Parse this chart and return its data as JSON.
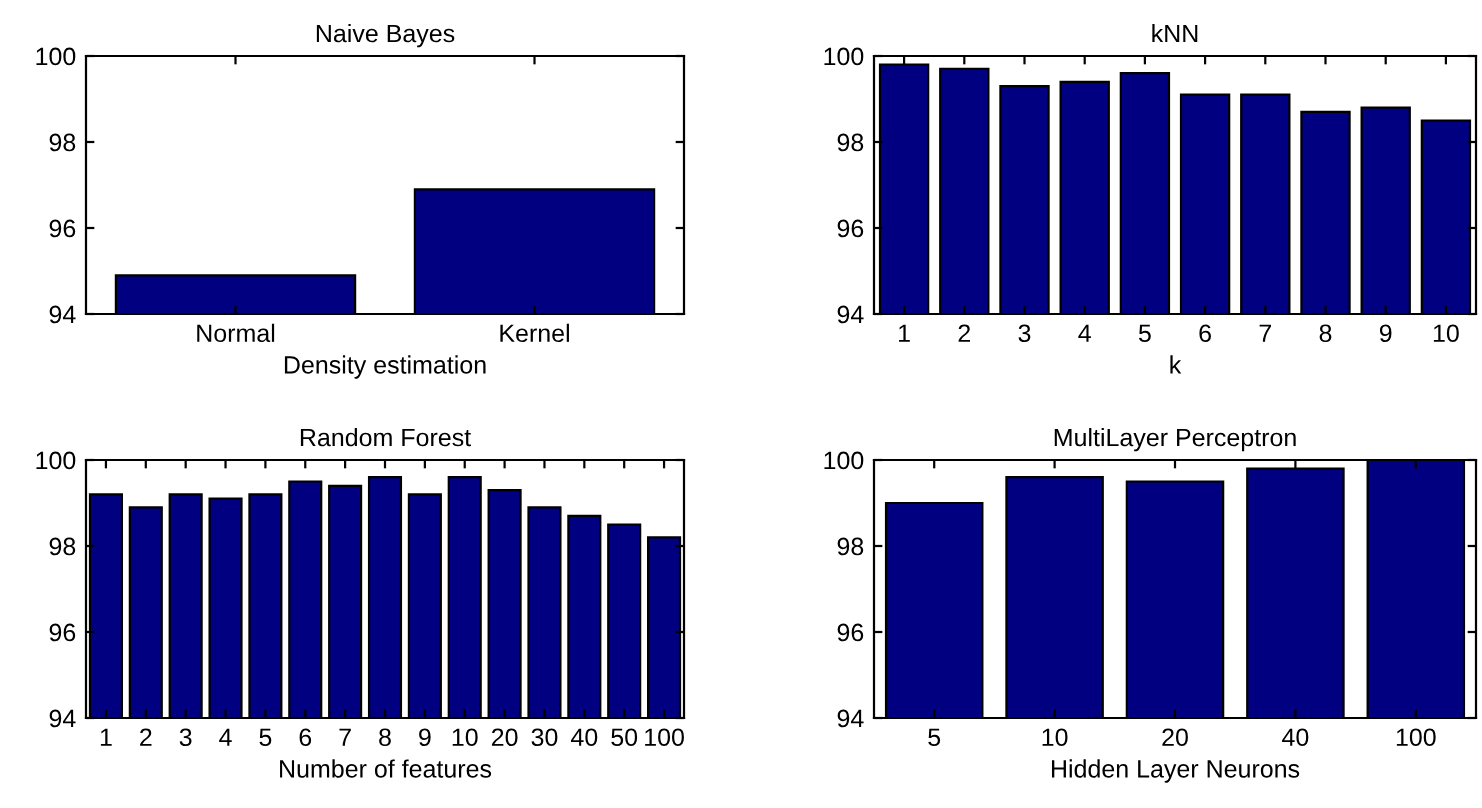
{
  "chart_data": [
    {
      "type": "bar",
      "title": "Naive Bayes",
      "xlabel": "Density estimation",
      "categories": [
        "Normal",
        "Kernel"
      ],
      "values": [
        94.9,
        96.9
      ],
      "color": "#000080",
      "ylim": [
        94,
        100
      ],
      "yticks": [
        94,
        96,
        98,
        100
      ],
      "grid": false,
      "legend": false
    },
    {
      "type": "bar",
      "title": "kNN",
      "xlabel": "k",
      "categories": [
        "1",
        "2",
        "3",
        "4",
        "5",
        "6",
        "7",
        "8",
        "9",
        "10"
      ],
      "values": [
        99.8,
        99.7,
        99.3,
        99.4,
        99.6,
        99.1,
        99.1,
        98.7,
        98.8,
        98.5
      ],
      "color": "#000080",
      "ylim": [
        94,
        100
      ],
      "yticks": [
        94,
        96,
        98,
        100
      ],
      "grid": false,
      "legend": false
    },
    {
      "type": "bar",
      "title": "Random Forest",
      "xlabel": "Number of features",
      "categories": [
        "1",
        "2",
        "3",
        "4",
        "5",
        "6",
        "7",
        "8",
        "9",
        "10",
        "20",
        "30",
        "40",
        "50",
        "100"
      ],
      "values": [
        99.2,
        98.9,
        99.2,
        99.1,
        99.2,
        99.5,
        99.4,
        99.6,
        99.2,
        99.6,
        99.3,
        98.9,
        98.7,
        98.5,
        98.2
      ],
      "color": "#000080",
      "ylim": [
        94,
        100
      ],
      "yticks": [
        94,
        96,
        98,
        100
      ],
      "grid": false,
      "legend": false
    },
    {
      "type": "bar",
      "title": "MultiLayer Perceptron",
      "xlabel": "Hidden Layer Neurons",
      "categories": [
        "5",
        "10",
        "20",
        "40",
        "100"
      ],
      "values": [
        99.0,
        99.6,
        99.5,
        99.8,
        100
      ],
      "color": "#000080",
      "ylim": [
        94,
        100
      ],
      "yticks": [
        94,
        96,
        98,
        100
      ],
      "grid": false,
      "legend": false
    }
  ]
}
